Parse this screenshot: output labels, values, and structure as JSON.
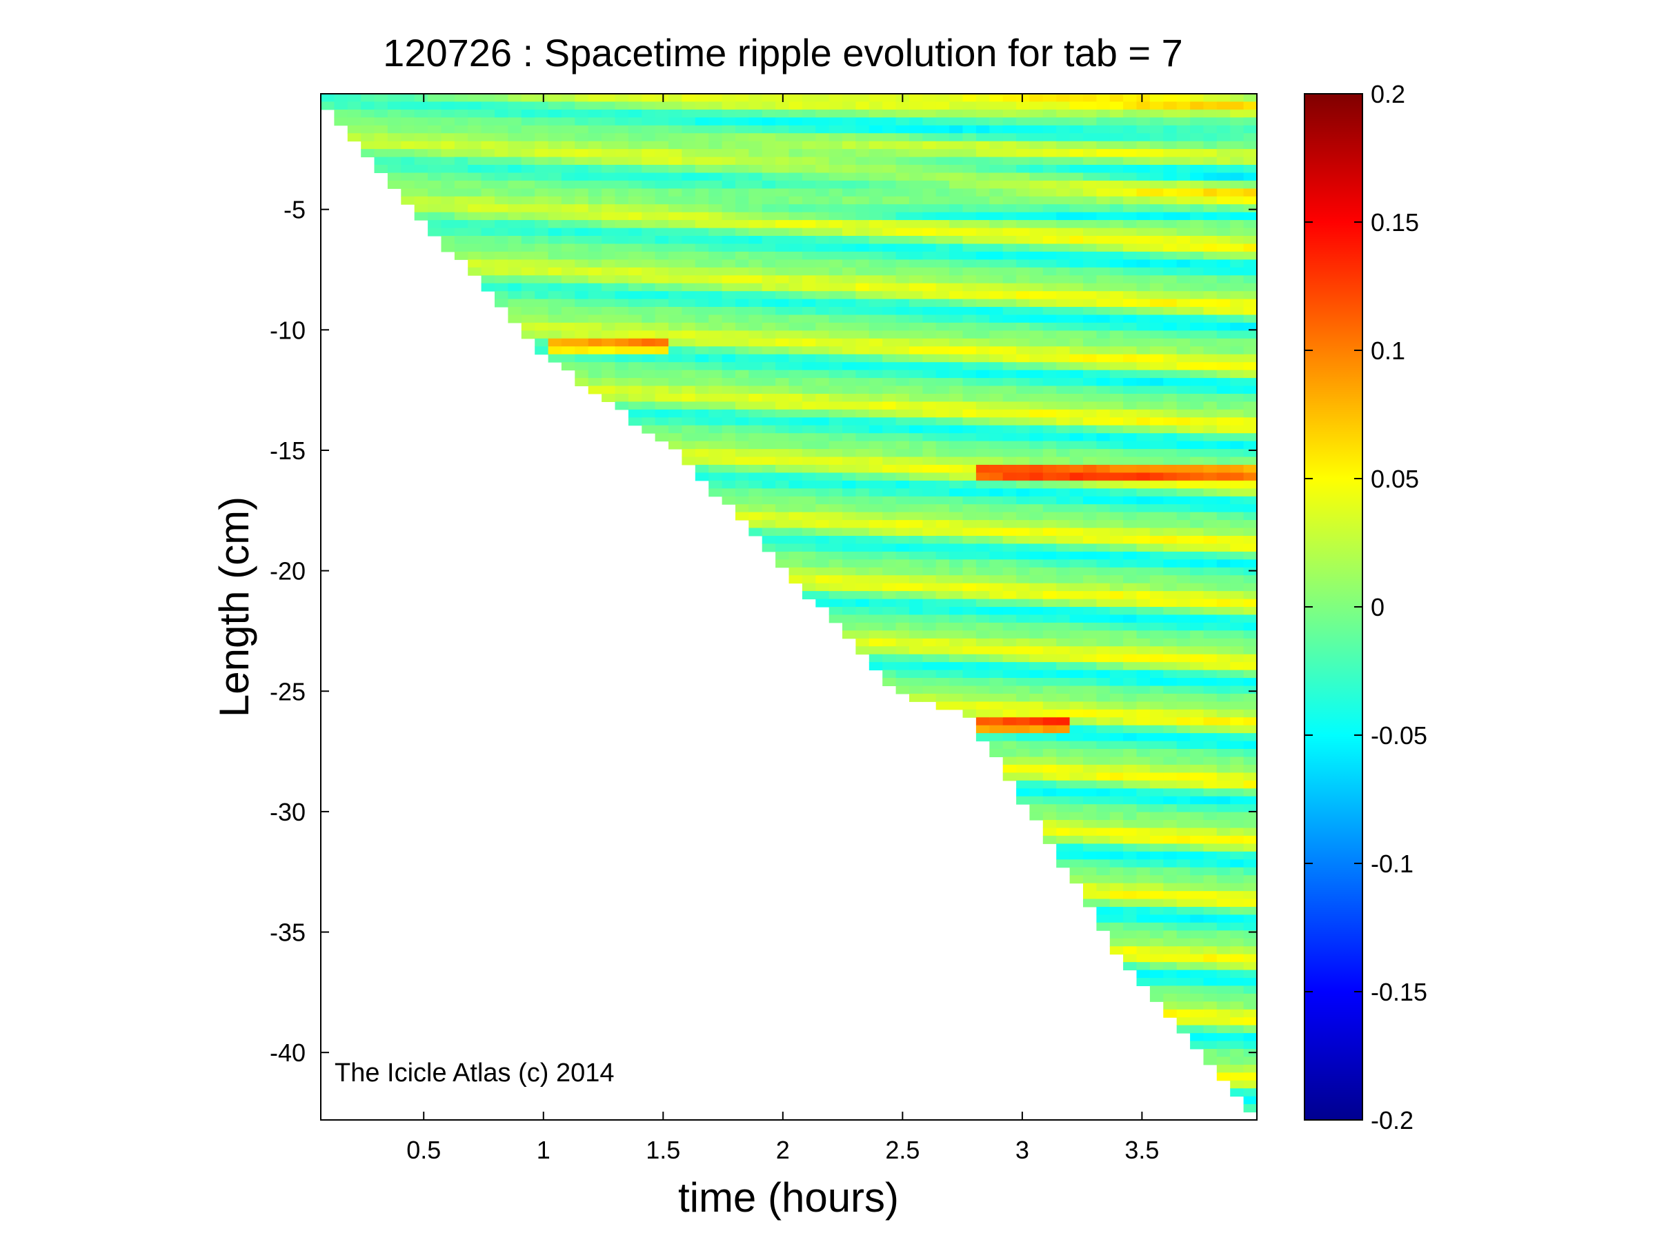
{
  "chart_data": {
    "type": "heatmap",
    "title": "120726 : Spacetime ripple evolution for tab = 7",
    "xlabel": "time (hours)",
    "ylabel": "Length (cm)",
    "xlim": [
      0.07,
      3.98
    ],
    "ylim": [
      -42.8,
      -0.2
    ],
    "xticks": [
      0.5,
      1,
      1.5,
      2,
      2.5,
      3,
      3.5
    ],
    "xtick_labels": [
      "0.5",
      "1",
      "1.5",
      "2",
      "2.5",
      "3",
      "3.5"
    ],
    "yticks": [
      -5,
      -10,
      -15,
      -20,
      -25,
      -30,
      -35,
      -40
    ],
    "ytick_labels": [
      "-5",
      "-10",
      "-15",
      "-20",
      "-25",
      "-30",
      "-35",
      "-40"
    ],
    "colorbar": {
      "colormap": "jet",
      "clim": [
        -0.2,
        0.2
      ],
      "ticks": [
        0.2,
        0.15,
        0.1,
        0.05,
        0,
        -0.05,
        -0.1,
        -0.15,
        -0.2
      ],
      "tick_labels": [
        "0.2",
        "0.15",
        "0.1",
        "0.05",
        "0",
        "-0.05",
        "-0.1",
        "-0.15",
        "-0.2"
      ]
    },
    "data_boundary": {
      "description_axis": "icicle tip length vs time; data exists above boundary",
      "points": [
        [
          0.07,
          -0.3
        ],
        [
          1.0,
          -10.8
        ],
        [
          1.6,
          -15.2
        ],
        [
          2.5,
          -25.0
        ],
        [
          2.8,
          -26.0
        ],
        [
          3.5,
          -37.0
        ],
        [
          3.98,
          -42.5
        ]
      ]
    },
    "watermark": "The Icicle Atlas (c) 2014",
    "grid": false,
    "colormap_stops": [
      [
        0.0,
        "#00008f"
      ],
      [
        0.125,
        "#0000ff"
      ],
      [
        0.375,
        "#00ffff"
      ],
      [
        0.625,
        "#ffff00"
      ],
      [
        0.875,
        "#ff0000"
      ],
      [
        1.0,
        "#800000"
      ]
    ]
  }
}
